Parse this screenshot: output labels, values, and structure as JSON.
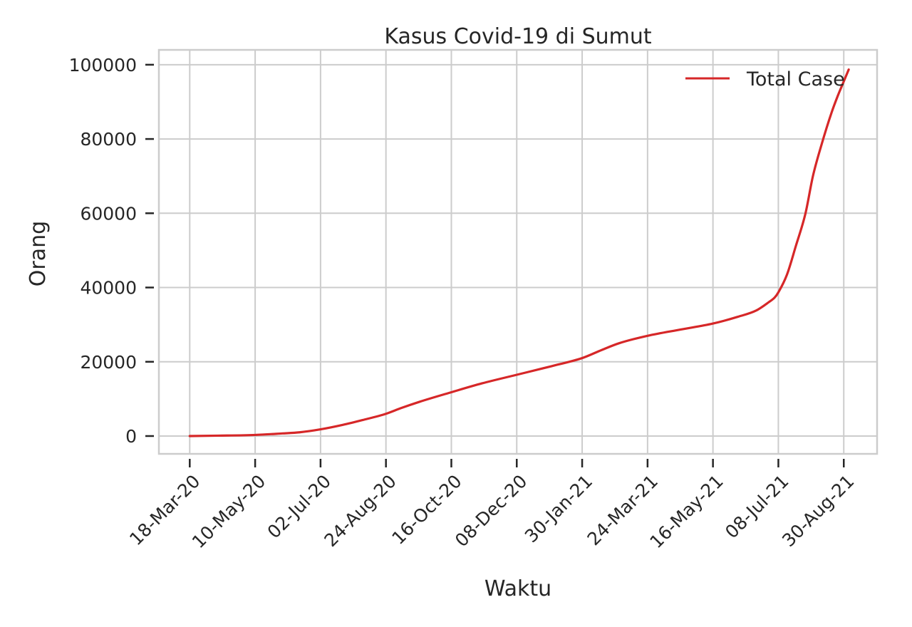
{
  "chart_data": {
    "type": "line",
    "title": "Kasus Covid-19 di Sumut",
    "xlabel": "Waktu",
    "ylabel": "Orang",
    "x_tick_labels": [
      "18-Mar-20",
      "10-May-20",
      "02-Jul-20",
      "24-Aug-20",
      "16-Oct-20",
      "08-Dec-20",
      "30-Jan-21",
      "24-Mar-21",
      "16-May-21",
      "08-Jul-21",
      "30-Aug-21"
    ],
    "y_ticks": [
      0,
      20000,
      40000,
      60000,
      80000,
      100000
    ],
    "xlim": [
      "2020-02-22",
      "2021-09-26"
    ],
    "ylim": [
      -4800,
      104000
    ],
    "grid": true,
    "legend_position": "upper-right",
    "colors": {
      "series": "#d62728",
      "grid": "#cccccc",
      "text": "#262626"
    },
    "series": [
      {
        "name": "Total Case",
        "x": [
          "2020-03-18",
          "2020-04-10",
          "2020-05-10",
          "2020-06-01",
          "2020-06-15",
          "2020-07-02",
          "2020-07-20",
          "2020-08-05",
          "2020-08-24",
          "2020-09-05",
          "2020-09-20",
          "2020-10-16",
          "2020-11-10",
          "2020-12-08",
          "2021-01-05",
          "2021-01-30",
          "2021-02-15",
          "2021-03-01",
          "2021-03-24",
          "2021-04-20",
          "2021-05-16",
          "2021-06-05",
          "2021-06-20",
          "2021-06-30",
          "2021-07-05",
          "2021-07-08",
          "2021-07-15",
          "2021-07-22",
          "2021-07-30",
          "2021-08-05",
          "2021-08-12",
          "2021-08-20",
          "2021-08-25",
          "2021-08-30",
          "2021-09-03"
        ],
        "y": [
          0,
          100,
          300,
          700,
          1000,
          1800,
          3000,
          4300,
          6000,
          7500,
          9200,
          11800,
          14200,
          16500,
          18800,
          21000,
          23200,
          25000,
          27000,
          28700,
          30300,
          32100,
          33800,
          36000,
          37300,
          38700,
          43500,
          51000,
          60000,
          70000,
          78500,
          87000,
          91500,
          95500,
          98700
        ]
      }
    ]
  }
}
